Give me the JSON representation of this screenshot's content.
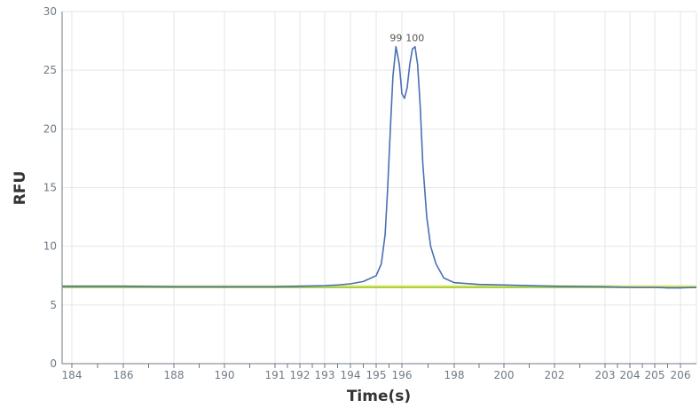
{
  "chart_data": {
    "type": "line",
    "xlabel": "Time(s)",
    "ylabel": "RFU",
    "ylim": [
      0,
      30
    ],
    "yticks": [
      0,
      5,
      10,
      15,
      20,
      25,
      30
    ],
    "grid": true,
    "x_ticks": [
      {
        "label": "184",
        "value": 184.0
      },
      {
        "label": "186",
        "value": 186.0
      },
      {
        "label": "188",
        "value": 188.0
      },
      {
        "label": "190",
        "value": 190.0
      },
      {
        "label": "191",
        "value": 191.0
      },
      {
        "label": "192",
        "value": 192.0
      },
      {
        "label": "193",
        "value": 193.0
      },
      {
        "label": "194",
        "value": 194.0
      },
      {
        "label": "195",
        "value": 195.0
      },
      {
        "label": "196",
        "value": 196.0
      },
      {
        "label": "198",
        "value": 198.0
      },
      {
        "label": "200",
        "value": 200.0
      },
      {
        "label": "202",
        "value": 202.0
      },
      {
        "label": "203",
        "value": 203.0
      },
      {
        "label": "204",
        "value": 204.0
      },
      {
        "label": "205",
        "value": 205.0
      },
      {
        "label": "206",
        "value": 206.0
      }
    ],
    "peak_labels": [
      {
        "label": "99",
        "x": 195.77,
        "y": 27.0
      },
      {
        "label": "100",
        "x": 196.5,
        "y": 27.0
      }
    ],
    "series": [
      {
        "color": "#4a6fb5",
        "x": [
          183.6,
          184,
          186,
          188,
          190,
          191,
          192,
          193,
          193.5,
          194,
          194.5,
          195,
          195.2,
          195.35,
          195.45,
          195.55,
          195.65,
          195.77,
          195.9,
          196.0,
          196.1,
          196.2,
          196.3,
          196.4,
          196.5,
          196.6,
          196.7,
          196.8,
          196.95,
          197.1,
          197.3,
          197.6,
          198,
          199,
          200,
          202,
          203,
          204,
          205,
          205.5,
          206,
          206.4
        ],
        "y": [
          6.6,
          6.6,
          6.6,
          6.55,
          6.55,
          6.55,
          6.6,
          6.65,
          6.7,
          6.8,
          7.0,
          7.5,
          8.5,
          11.0,
          15.0,
          20.0,
          24.5,
          27.0,
          25.5,
          23.0,
          22.6,
          23.5,
          25.5,
          26.8,
          27.0,
          25.5,
          22.0,
          17.0,
          12.5,
          10.0,
          8.5,
          7.3,
          6.9,
          6.75,
          6.7,
          6.6,
          6.55,
          6.5,
          6.5,
          6.45,
          6.45,
          6.5
        ]
      },
      {
        "color": "#9acd32",
        "x": [
          183.6,
          206.4
        ],
        "y": [
          6.5,
          6.5
        ]
      },
      {
        "color": "#e8e870",
        "x": [
          183.6,
          206.4
        ],
        "y": [
          6.62,
          6.62
        ]
      }
    ]
  }
}
